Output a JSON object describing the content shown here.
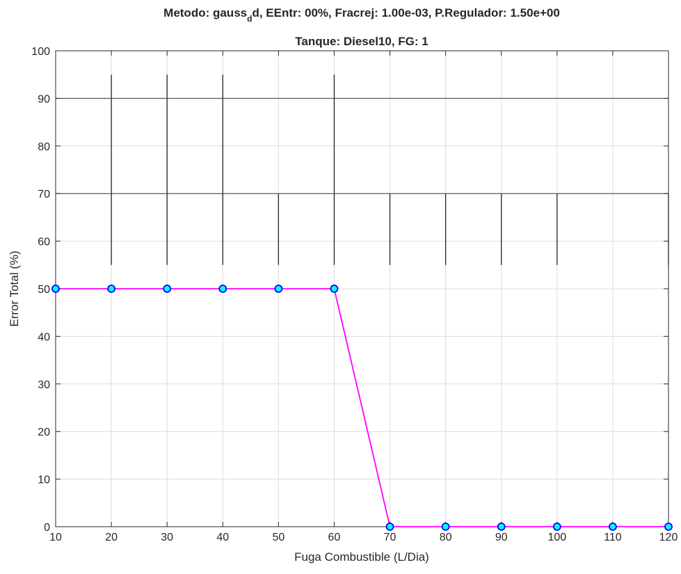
{
  "chart_data": {
    "type": "line",
    "title_prefix": "Metodo: gauss",
    "title_subscript": "d",
    "title_suffix": "d, EEntr: 00%, Fracrej: 1.00e-03, P.Regulador: 1.50e+00",
    "subtitle": "Tanque: Diesel10, FG: 1",
    "xlabel": "Fuga Combustible (L/Dia)",
    "ylabel": "Error Total (%)",
    "xlim": [
      10,
      120
    ],
    "ylim": [
      0,
      100
    ],
    "xticks": [
      10,
      20,
      30,
      40,
      50,
      60,
      70,
      80,
      90,
      100,
      110,
      120
    ],
    "yticks": [
      0,
      10,
      20,
      30,
      40,
      50,
      60,
      70,
      80,
      90,
      100
    ],
    "grid": true,
    "series": [
      {
        "x": [
          10,
          20,
          30,
          40,
          50,
          60,
          70,
          80,
          90,
          100,
          110,
          120
        ],
        "values": [
          50,
          50,
          50,
          50,
          50,
          50,
          0,
          0,
          0,
          0,
          0,
          0
        ],
        "line_color": "#ff00ff",
        "marker_face": "#00ffff",
        "marker_edge": "#0000ff"
      }
    ]
  }
}
